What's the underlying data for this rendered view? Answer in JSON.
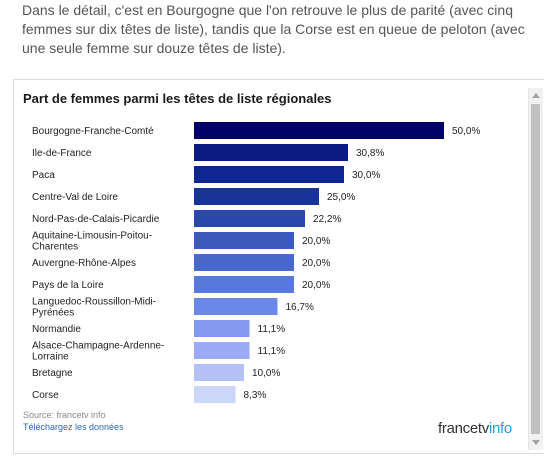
{
  "article": {
    "intro": "Dans le détail, c'est en Bourgogne que l'on retrouve le plus de parité (avec cinq femmes sur dix têtes de liste), tandis que la Corse est en queue de peloton (avec une seule femme sur douze têtes de liste)."
  },
  "chart_data": {
    "type": "bar",
    "orientation": "horizontal",
    "title": "Part de femmes parmi les têtes de liste régionales",
    "categories": [
      "Bourgogne-Franche-Comté",
      "Ile-de-France",
      "Paca",
      "Centre-Val de Loire",
      "Nord-Pas-de-Calais-Picardie",
      "Aquitaine-Limousin-Poitou-Charentes",
      "Auvergne-Rhône-Alpes",
      "Pays de la Loire",
      "Languedoc-Roussillon-Midi-Pyrénées",
      "Normandie",
      "Alsace-Champagne-Ardenne-Lorraine",
      "Bretagne",
      "Corse"
    ],
    "values": [
      50.0,
      30.8,
      30.0,
      25.0,
      22.2,
      20.0,
      20.0,
      20.0,
      16.7,
      11.1,
      11.1,
      10.0,
      8.3
    ],
    "value_labels": [
      "50,0%",
      "30,8%",
      "30,0%",
      "25,0%",
      "22,2%",
      "20,0%",
      "20,0%",
      "20,0%",
      "16,7%",
      "11,1%",
      "11,1%",
      "10,0%",
      "8,3%"
    ],
    "xlim": [
      0,
      50
    ],
    "grid": false,
    "colors": [
      "#000066",
      "#0a1a80",
      "#0f2591",
      "#1a3399",
      "#2b47ad",
      "#3d5abf",
      "#4a67cc",
      "#5878dd",
      "#6b87ea",
      "#8399f2",
      "#9aaaf4",
      "#b4c1f7",
      "#ccd6fa"
    ]
  },
  "footer": {
    "source": "Source: francetv info",
    "download": "Téléchargez les données"
  },
  "logo": {
    "part1": "francetv",
    "part2": "info"
  }
}
